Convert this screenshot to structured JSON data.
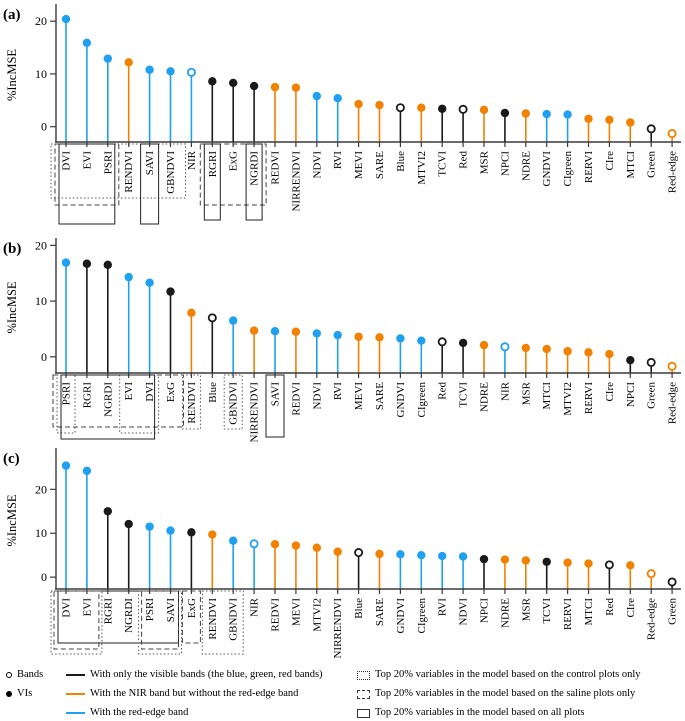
{
  "figure": {
    "colors": {
      "black": "#1a1a1a",
      "orange": "#F28100",
      "blue": "#1FA0F0",
      "axis": "#3a3a3a"
    },
    "legend": {
      "marker_entries": [
        {
          "marker": "open",
          "label": "Bands"
        },
        {
          "marker": "filled",
          "label": "VIs"
        }
      ],
      "line_entries": [
        {
          "color": "black",
          "label": "With only the visible bands (the blue, green, red bands)"
        },
        {
          "color": "orange",
          "label": "With the NIR band but without the red-edge band"
        },
        {
          "color": "blue",
          "label": "With the red-edge band"
        }
      ],
      "box_entries": [
        {
          "style": "dotted",
          "label": "Top 20% variables in the model based on the control plots only"
        },
        {
          "style": "dashed",
          "label": "Top 20% variables in the model based on the saline plots only"
        },
        {
          "style": "solid",
          "label": "Top 20% variables in the model based on all plots"
        }
      ]
    }
  },
  "chart_data": [
    {
      "type": "lollipop",
      "panel_label": "(a)",
      "ylabel": "%IncMSE",
      "yticks": [
        0,
        10,
        20
      ],
      "ylim": [
        -2.9,
        22.5
      ],
      "items": [
        {
          "label": "DVI",
          "value": 20.4,
          "color": "blue",
          "marker": "filled"
        },
        {
          "label": "EVI",
          "value": 15.9,
          "color": "blue",
          "marker": "filled"
        },
        {
          "label": "PSRI",
          "value": 12.9,
          "color": "blue",
          "marker": "filled"
        },
        {
          "label": "RENDVI",
          "value": 12.2,
          "color": "orange",
          "marker": "filled"
        },
        {
          "label": "SAVI",
          "value": 10.8,
          "color": "blue",
          "marker": "filled"
        },
        {
          "label": "GBNDVI",
          "value": 10.5,
          "color": "blue",
          "marker": "filled"
        },
        {
          "label": "NIR",
          "value": 10.3,
          "color": "blue",
          "marker": "open"
        },
        {
          "label": "RGRI",
          "value": 8.6,
          "color": "black",
          "marker": "filled"
        },
        {
          "label": "ExG",
          "value": 8.3,
          "color": "black",
          "marker": "filled"
        },
        {
          "label": "NGRDI",
          "value": 7.7,
          "color": "black",
          "marker": "filled"
        },
        {
          "label": "REDVI",
          "value": 7.5,
          "color": "orange",
          "marker": "filled"
        },
        {
          "label": "NIRRENDVI",
          "value": 7.4,
          "color": "orange",
          "marker": "filled"
        },
        {
          "label": "NDVI",
          "value": 5.8,
          "color": "blue",
          "marker": "filled"
        },
        {
          "label": "RVI",
          "value": 5.4,
          "color": "blue",
          "marker": "filled"
        },
        {
          "label": "MEVI",
          "value": 4.3,
          "color": "orange",
          "marker": "filled"
        },
        {
          "label": "SARE",
          "value": 4.1,
          "color": "orange",
          "marker": "filled"
        },
        {
          "label": "Blue",
          "value": 3.6,
          "color": "black",
          "marker": "open"
        },
        {
          "label": "MTVI2",
          "value": 3.6,
          "color": "orange",
          "marker": "filled"
        },
        {
          "label": "TCVI",
          "value": 3.4,
          "color": "black",
          "marker": "filled"
        },
        {
          "label": "Red",
          "value": 3.3,
          "color": "black",
          "marker": "open"
        },
        {
          "label": "MSR",
          "value": 3.2,
          "color": "orange",
          "marker": "filled"
        },
        {
          "label": "NPCI",
          "value": 2.6,
          "color": "black",
          "marker": "filled"
        },
        {
          "label": "NDRE",
          "value": 2.5,
          "color": "orange",
          "marker": "filled"
        },
        {
          "label": "GNDVI",
          "value": 2.4,
          "color": "blue",
          "marker": "filled"
        },
        {
          "label": "CIgreen",
          "value": 2.3,
          "color": "blue",
          "marker": "filled"
        },
        {
          "label": "RERVI",
          "value": 1.5,
          "color": "orange",
          "marker": "filled"
        },
        {
          "label": "CIre",
          "value": 1.3,
          "color": "orange",
          "marker": "filled"
        },
        {
          "label": "MTCI",
          "value": 0.8,
          "color": "orange",
          "marker": "filled"
        },
        {
          "label": "Green",
          "value": -0.4,
          "color": "black",
          "marker": "open"
        },
        {
          "label": "Red-edge",
          "value": -1.3,
          "color": "orange",
          "marker": "open"
        }
      ],
      "boxes": [
        {
          "style": "dotted",
          "from": 0,
          "to": 5,
          "pad": 15,
          "depth": 54
        },
        {
          "style": "dashed",
          "from": 0,
          "to": 2,
          "pad": 11,
          "depth": 61
        },
        {
          "style": "solid",
          "from": 0,
          "to": 2,
          "pad": 7,
          "depth": 80
        },
        {
          "style": "solid",
          "from": 4,
          "to": 4,
          "pad": 9,
          "depth": 80
        },
        {
          "style": "dashed",
          "from": 7,
          "to": 9,
          "pad": 12,
          "depth": 61
        },
        {
          "style": "solid",
          "from": 7,
          "to": 7,
          "pad": 8,
          "depth": 76
        },
        {
          "style": "solid",
          "from": 9,
          "to": 9,
          "pad": 8,
          "depth": 76
        }
      ]
    },
    {
      "type": "lollipop",
      "panel_label": "(b)",
      "ylabel": "%IncMSE",
      "yticks": [
        0,
        10,
        20
      ],
      "ylim": [
        -2.9,
        20.6
      ],
      "items": [
        {
          "label": "PSRI",
          "value": 16.9,
          "color": "blue",
          "marker": "filled"
        },
        {
          "label": "RGRI",
          "value": 16.7,
          "color": "black",
          "marker": "filled"
        },
        {
          "label": "NGRDI",
          "value": 16.5,
          "color": "black",
          "marker": "filled"
        },
        {
          "label": "EVI",
          "value": 14.3,
          "color": "blue",
          "marker": "filled"
        },
        {
          "label": "DVI",
          "value": 13.3,
          "color": "blue",
          "marker": "filled"
        },
        {
          "label": "ExG",
          "value": 11.7,
          "color": "black",
          "marker": "filled"
        },
        {
          "label": "RENDVI",
          "value": 7.9,
          "color": "orange",
          "marker": "filled"
        },
        {
          "label": "Blue",
          "value": 7.0,
          "color": "black",
          "marker": "open"
        },
        {
          "label": "GBNDVI",
          "value": 6.5,
          "color": "blue",
          "marker": "filled"
        },
        {
          "label": "NIRRENDVI",
          "value": 4.7,
          "color": "orange",
          "marker": "filled"
        },
        {
          "label": "SAVI",
          "value": 4.6,
          "color": "blue",
          "marker": "filled"
        },
        {
          "label": "REDVI",
          "value": 4.5,
          "color": "orange",
          "marker": "filled"
        },
        {
          "label": "NDVI",
          "value": 4.2,
          "color": "blue",
          "marker": "filled"
        },
        {
          "label": "RVI",
          "value": 3.9,
          "color": "blue",
          "marker": "filled"
        },
        {
          "label": "MEVI",
          "value": 3.6,
          "color": "orange",
          "marker": "filled"
        },
        {
          "label": "SARE",
          "value": 3.5,
          "color": "orange",
          "marker": "filled"
        },
        {
          "label": "GNDVI",
          "value": 3.3,
          "color": "blue",
          "marker": "filled"
        },
        {
          "label": "CIgreen",
          "value": 2.9,
          "color": "blue",
          "marker": "filled"
        },
        {
          "label": "Red",
          "value": 2.7,
          "color": "black",
          "marker": "open"
        },
        {
          "label": "TCVI",
          "value": 2.5,
          "color": "black",
          "marker": "filled"
        },
        {
          "label": "NDRE",
          "value": 2.1,
          "color": "orange",
          "marker": "filled"
        },
        {
          "label": "NIR",
          "value": 1.8,
          "color": "blue",
          "marker": "open"
        },
        {
          "label": "MSR",
          "value": 1.6,
          "color": "orange",
          "marker": "filled"
        },
        {
          "label": "MTCI",
          "value": 1.4,
          "color": "orange",
          "marker": "filled"
        },
        {
          "label": "MTVI2",
          "value": 1.0,
          "color": "orange",
          "marker": "filled"
        },
        {
          "label": "RERVI",
          "value": 0.8,
          "color": "orange",
          "marker": "filled"
        },
        {
          "label": "CIre",
          "value": 0.5,
          "color": "orange",
          "marker": "filled"
        },
        {
          "label": "NPCI",
          "value": -0.6,
          "color": "black",
          "marker": "filled"
        },
        {
          "label": "Green",
          "value": -1.0,
          "color": "black",
          "marker": "open"
        },
        {
          "label": "Red-edge",
          "value": -1.7,
          "color": "orange",
          "marker": "open"
        }
      ],
      "boxes": [
        {
          "style": "dashed",
          "from": 0,
          "to": 5,
          "pad": 13,
          "depth": 52
        },
        {
          "style": "dotted",
          "from": 0,
          "to": 0,
          "pad": 9,
          "depth": 58
        },
        {
          "style": "dotted",
          "from": 3,
          "to": 4,
          "pad": 9,
          "depth": 58
        },
        {
          "style": "solid",
          "from": 0,
          "to": 4,
          "pad": 5,
          "depth": 64
        },
        {
          "style": "dotted",
          "from": 6,
          "to": 6,
          "pad": 9,
          "depth": 54
        },
        {
          "style": "dotted",
          "from": 8,
          "to": 8,
          "pad": 9,
          "depth": 54
        },
        {
          "style": "solid",
          "from": 10,
          "to": 10,
          "pad": 9,
          "depth": 62
        }
      ]
    },
    {
      "type": "lollipop",
      "panel_label": "(c)",
      "ylabel": "%IncMSE",
      "yticks": [
        0,
        10,
        20
      ],
      "ylim": [
        -2.7,
        28.5
      ],
      "items": [
        {
          "label": "DVI",
          "value": 25.4,
          "color": "blue",
          "marker": "filled"
        },
        {
          "label": "EVI",
          "value": 24.2,
          "color": "blue",
          "marker": "filled"
        },
        {
          "label": "RGRI",
          "value": 15.0,
          "color": "black",
          "marker": "filled"
        },
        {
          "label": "NGRDI",
          "value": 12.1,
          "color": "black",
          "marker": "filled"
        },
        {
          "label": "PSRI",
          "value": 11.5,
          "color": "blue",
          "marker": "filled"
        },
        {
          "label": "SAVI",
          "value": 10.6,
          "color": "blue",
          "marker": "filled"
        },
        {
          "label": "ExG",
          "value": 10.2,
          "color": "black",
          "marker": "filled"
        },
        {
          "label": "RENDVI",
          "value": 9.7,
          "color": "orange",
          "marker": "filled"
        },
        {
          "label": "GBNDVI",
          "value": 8.3,
          "color": "blue",
          "marker": "filled"
        },
        {
          "label": "NIR",
          "value": 7.6,
          "color": "blue",
          "marker": "open"
        },
        {
          "label": "REDVI",
          "value": 7.5,
          "color": "orange",
          "marker": "filled"
        },
        {
          "label": "MEVI",
          "value": 7.2,
          "color": "orange",
          "marker": "filled"
        },
        {
          "label": "MTVI2",
          "value": 6.7,
          "color": "orange",
          "marker": "filled"
        },
        {
          "label": "NIRRENDVI",
          "value": 5.8,
          "color": "orange",
          "marker": "filled"
        },
        {
          "label": "Blue",
          "value": 5.6,
          "color": "black",
          "marker": "open"
        },
        {
          "label": "SARE",
          "value": 5.3,
          "color": "orange",
          "marker": "filled"
        },
        {
          "label": "GNDVI",
          "value": 5.2,
          "color": "blue",
          "marker": "filled"
        },
        {
          "label": "CIgreen",
          "value": 5.0,
          "color": "blue",
          "marker": "filled"
        },
        {
          "label": "RVI",
          "value": 4.8,
          "color": "blue",
          "marker": "filled"
        },
        {
          "label": "NDVI",
          "value": 4.7,
          "color": "blue",
          "marker": "filled"
        },
        {
          "label": "NPCI",
          "value": 4.1,
          "color": "black",
          "marker": "filled"
        },
        {
          "label": "NDRE",
          "value": 4.0,
          "color": "orange",
          "marker": "filled"
        },
        {
          "label": "MSR",
          "value": 3.8,
          "color": "orange",
          "marker": "filled"
        },
        {
          "label": "TCVI",
          "value": 3.5,
          "color": "black",
          "marker": "filled"
        },
        {
          "label": "RERVI",
          "value": 3.3,
          "color": "orange",
          "marker": "filled"
        },
        {
          "label": "MTCI",
          "value": 3.1,
          "color": "orange",
          "marker": "filled"
        },
        {
          "label": "Red",
          "value": 2.8,
          "color": "black",
          "marker": "open"
        },
        {
          "label": "CIre",
          "value": 2.7,
          "color": "orange",
          "marker": "filled"
        },
        {
          "label": "Red-edge",
          "value": 0.8,
          "color": "orange",
          "marker": "open"
        },
        {
          "label": "Green",
          "value": -1.1,
          "color": "black",
          "marker": "open"
        }
      ],
      "boxes": [
        {
          "style": "solid",
          "from": 0,
          "to": 5,
          "pad": 8,
          "depth": 52
        },
        {
          "style": "dashed",
          "from": 0,
          "to": 1,
          "pad": 12,
          "depth": 58
        },
        {
          "style": "dotted",
          "from": 0,
          "to": 1,
          "pad": 15,
          "depth": 63
        },
        {
          "style": "dashed",
          "from": 4,
          "to": 5,
          "pad": 8,
          "depth": 58
        },
        {
          "style": "dotted",
          "from": 4,
          "to": 5,
          "pad": 11,
          "depth": 63
        },
        {
          "style": "dashed",
          "from": 6,
          "to": 6,
          "pad": 9,
          "depth": 52
        },
        {
          "style": "dotted",
          "from": 7,
          "to": 8,
          "pad": 10,
          "depth": 63
        }
      ]
    }
  ]
}
